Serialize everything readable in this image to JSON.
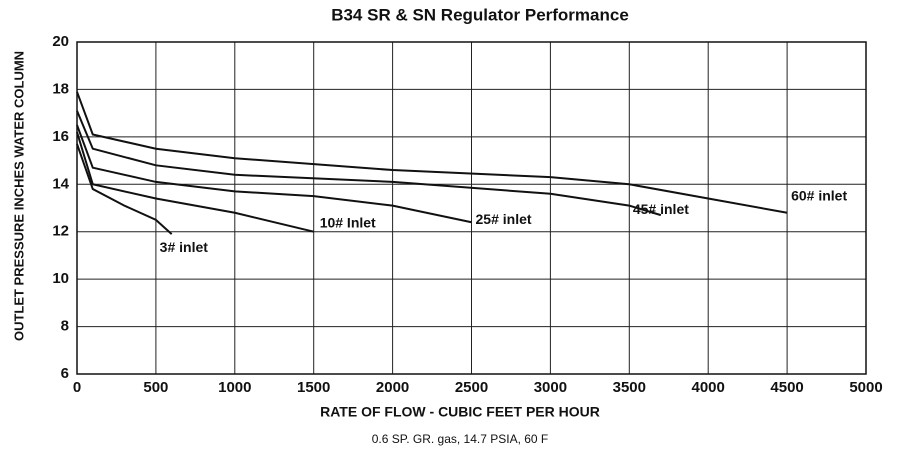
{
  "chart_data": {
    "type": "line",
    "title": "B34 SR & SN Regulator Performance",
    "x_label": "RATE OF FLOW - CUBIC FEET PER HOUR",
    "y_label": "OUTLET PRESSURE INCHES WATER COLUMN",
    "note": "0.6 SP. GR. gas, 14.7 PSIA, 60 F",
    "color": "#111111",
    "grid": true,
    "xlim": [
      0,
      5000
    ],
    "xticks": [
      0,
      500,
      1000,
      1500,
      2000,
      2500,
      3000,
      3500,
      4000,
      4500,
      5000
    ],
    "ylim": [
      6,
      20
    ],
    "yticks": [
      6,
      8,
      10,
      12,
      14,
      16,
      18,
      20
    ],
    "series": [
      {
        "name": "3# inlet",
        "x": [
          0,
          100,
          300,
          500,
          600
        ],
        "values": [
          15.7,
          13.8,
          13.1,
          12.5,
          11.9
        ]
      },
      {
        "name": "10# Inlet",
        "x": [
          0,
          100,
          500,
          1000,
          1500
        ],
        "values": [
          16.2,
          14.0,
          13.4,
          12.8,
          12.0
        ]
      },
      {
        "name": "25# inlet",
        "x": [
          0,
          100,
          500,
          1000,
          1500,
          2000,
          2500
        ],
        "values": [
          16.5,
          14.7,
          14.1,
          13.7,
          13.5,
          13.1,
          12.4
        ]
      },
      {
        "name": "45# inlet",
        "x": [
          0,
          100,
          500,
          1000,
          2000,
          3000,
          3500,
          3700
        ],
        "values": [
          17.1,
          15.5,
          14.8,
          14.4,
          14.1,
          13.6,
          13.1,
          12.7
        ]
      },
      {
        "name": "60# inlet",
        "x": [
          0,
          100,
          500,
          1000,
          2000,
          3000,
          3500,
          4000,
          4500
        ],
        "values": [
          17.9,
          16.1,
          15.5,
          15.1,
          14.6,
          14.3,
          14.0,
          13.4,
          12.8
        ]
      }
    ]
  }
}
